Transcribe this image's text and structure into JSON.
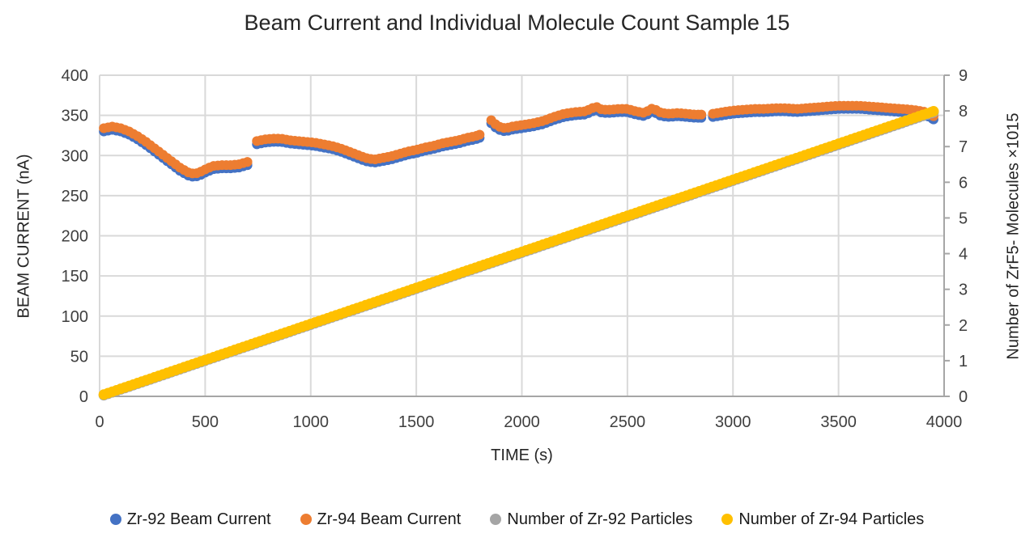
{
  "chart_data": {
    "type": "scatter",
    "title": "Beam Current and Individual Molecule Count Sample 15",
    "x_axis": {
      "label": "TIME (s)",
      "min": 0,
      "max": 4000,
      "tick_step": 500,
      "ticks": [
        0,
        500,
        1000,
        1500,
        2000,
        2500,
        3000,
        3500,
        4000
      ]
    },
    "y_axis_left": {
      "label": "BEAM CURRENT (nA)",
      "min": 0,
      "max": 400,
      "tick_step": 50,
      "ticks": [
        0,
        50,
        100,
        150,
        200,
        250,
        300,
        350,
        400
      ]
    },
    "y_axis_right": {
      "label": "Number of ZrF5- Molecules ×1015",
      "min": 0,
      "max": 9,
      "tick_step": 1,
      "ticks": [
        0,
        1,
        2,
        3,
        4,
        5,
        6,
        7,
        8,
        9
      ]
    },
    "grid": true,
    "legend_position": "bottom",
    "sample_interval_s": 20,
    "style": {
      "grid_color": "#D9D9D9",
      "axis_color": "#A6A6A6",
      "tick_text_color": "#3f3f3f",
      "background": "#FFFFFF"
    },
    "series": [
      {
        "name": "Zr-92 Beam Current",
        "color": "#4472C4",
        "axis": "left",
        "marker_radius": 6,
        "segments": [
          [
            [
              20,
              330
            ],
            [
              60,
              332
            ],
            [
              100,
              330
            ],
            [
              140,
              326
            ],
            [
              180,
              320
            ],
            [
              220,
              313
            ],
            [
              260,
              305
            ],
            [
              300,
              297
            ],
            [
              340,
              289
            ],
            [
              380,
              281
            ],
            [
              420,
              275
            ],
            [
              450,
              273
            ],
            [
              480,
              276
            ],
            [
              510,
              280
            ],
            [
              540,
              283
            ],
            [
              580,
              284
            ],
            [
              620,
              284
            ],
            [
              660,
              285
            ],
            [
              700,
              288
            ]
          ],
          [
            [
              745,
              314
            ],
            [
              780,
              316
            ],
            [
              820,
              317
            ],
            [
              860,
              317
            ],
            [
              900,
              315
            ],
            [
              940,
              314
            ],
            [
              980,
              313
            ],
            [
              1020,
              312
            ],
            [
              1060,
              310
            ],
            [
              1100,
              308
            ],
            [
              1140,
              305
            ],
            [
              1180,
              301
            ],
            [
              1220,
              297
            ],
            [
              1260,
              293
            ],
            [
              1300,
              291
            ],
            [
              1340,
              293
            ],
            [
              1380,
              295
            ],
            [
              1420,
              298
            ],
            [
              1460,
              301
            ],
            [
              1500,
              303
            ],
            [
              1540,
              306
            ],
            [
              1580,
              308
            ],
            [
              1620,
              311
            ],
            [
              1660,
              313
            ],
            [
              1700,
              315
            ],
            [
              1740,
              318
            ],
            [
              1780,
              320
            ],
            [
              1800,
              322
            ]
          ],
          [
            [
              1855,
              340
            ],
            [
              1875,
              335
            ],
            [
              1900,
              331
            ],
            [
              1925,
              330
            ],
            [
              1950,
              332
            ],
            [
              2000,
              334
            ],
            [
              2050,
              336
            ],
            [
              2100,
              339
            ],
            [
              2150,
              344
            ],
            [
              2200,
              348
            ],
            [
              2250,
              350
            ],
            [
              2300,
              351
            ],
            [
              2350,
              357
            ],
            [
              2380,
              353
            ],
            [
              2420,
              353
            ],
            [
              2460,
              354
            ],
            [
              2500,
              354
            ],
            [
              2540,
              351
            ],
            [
              2580,
              349
            ],
            [
              2620,
              355
            ],
            [
              2660,
              349
            ],
            [
              2700,
              348
            ],
            [
              2740,
              349
            ],
            [
              2780,
              348
            ],
            [
              2820,
              347
            ],
            [
              2850,
              347
            ]
          ],
          [
            [
              2905,
              348
            ],
            [
              2950,
              350
            ],
            [
              3000,
              352
            ],
            [
              3050,
              353
            ],
            [
              3100,
              354
            ],
            [
              3150,
              354
            ],
            [
              3200,
              355
            ],
            [
              3250,
              355
            ],
            [
              3300,
              354
            ],
            [
              3350,
              355
            ],
            [
              3400,
              356
            ],
            [
              3450,
              357
            ],
            [
              3500,
              358
            ],
            [
              3550,
              358
            ],
            [
              3600,
              358
            ],
            [
              3650,
              357
            ],
            [
              3700,
              356
            ],
            [
              3750,
              355
            ],
            [
              3800,
              354
            ],
            [
              3850,
              353
            ],
            [
              3900,
              351
            ],
            [
              3930,
              348
            ],
            [
              3950,
              345
            ]
          ]
        ]
      },
      {
        "name": "Zr-94 Beam Current",
        "color": "#ED7D31",
        "axis": "left",
        "marker_radius": 6,
        "segments": [
          [
            [
              20,
              334
            ],
            [
              60,
              336
            ],
            [
              100,
              334
            ],
            [
              140,
              330
            ],
            [
              180,
              324
            ],
            [
              220,
              317
            ],
            [
              260,
              309
            ],
            [
              300,
              301
            ],
            [
              340,
              293
            ],
            [
              380,
              285
            ],
            [
              420,
              279
            ],
            [
              450,
              277
            ],
            [
              480,
              280
            ],
            [
              510,
              284
            ],
            [
              540,
              287
            ],
            [
              580,
              288
            ],
            [
              620,
              288
            ],
            [
              660,
              289
            ],
            [
              700,
              292
            ]
          ],
          [
            [
              745,
              318
            ],
            [
              780,
              320
            ],
            [
              820,
              321
            ],
            [
              860,
              321
            ],
            [
              900,
              319
            ],
            [
              940,
              318
            ],
            [
              980,
              317
            ],
            [
              1020,
              316
            ],
            [
              1060,
              314
            ],
            [
              1100,
              312
            ],
            [
              1140,
              309
            ],
            [
              1180,
              305
            ],
            [
              1220,
              301
            ],
            [
              1260,
              297
            ],
            [
              1300,
              295
            ],
            [
              1340,
              297
            ],
            [
              1380,
              299
            ],
            [
              1420,
              302
            ],
            [
              1460,
              305
            ],
            [
              1500,
              307
            ],
            [
              1540,
              310
            ],
            [
              1580,
              312
            ],
            [
              1620,
              315
            ],
            [
              1660,
              317
            ],
            [
              1700,
              319
            ],
            [
              1740,
              322
            ],
            [
              1780,
              324
            ],
            [
              1800,
              326
            ]
          ],
          [
            [
              1855,
              344
            ],
            [
              1875,
              339
            ],
            [
              1900,
              335
            ],
            [
              1925,
              334
            ],
            [
              1950,
              336
            ],
            [
              2000,
              338
            ],
            [
              2050,
              340
            ],
            [
              2100,
              343
            ],
            [
              2150,
              348
            ],
            [
              2200,
              352
            ],
            [
              2250,
              354
            ],
            [
              2300,
              355
            ],
            [
              2350,
              361
            ],
            [
              2380,
              357
            ],
            [
              2420,
              357
            ],
            [
              2460,
              358
            ],
            [
              2500,
              358
            ],
            [
              2540,
              355
            ],
            [
              2580,
              353
            ],
            [
              2620,
              359
            ],
            [
              2660,
              353
            ],
            [
              2700,
              352
            ],
            [
              2740,
              353
            ],
            [
              2780,
              352
            ],
            [
              2820,
              351
            ],
            [
              2850,
              351
            ]
          ],
          [
            [
              2905,
              352
            ],
            [
              2950,
              354
            ],
            [
              3000,
              356
            ],
            [
              3050,
              357
            ],
            [
              3100,
              358
            ],
            [
              3150,
              358
            ],
            [
              3200,
              359
            ],
            [
              3250,
              359
            ],
            [
              3300,
              358
            ],
            [
              3350,
              359
            ],
            [
              3400,
              360
            ],
            [
              3450,
              361
            ],
            [
              3500,
              362
            ],
            [
              3550,
              362
            ],
            [
              3600,
              362
            ],
            [
              3650,
              361
            ],
            [
              3700,
              360
            ],
            [
              3750,
              359
            ],
            [
              3800,
              358
            ],
            [
              3850,
              357
            ],
            [
              3900,
              355
            ],
            [
              3930,
              352
            ],
            [
              3950,
              349
            ]
          ]
        ]
      },
      {
        "name": "Number of Zr-92 Particles",
        "color": "#A5A5A5",
        "axis": "right",
        "marker_radius": 6.5,
        "segments": [
          [
            [
              20,
              0.03
            ],
            [
              3950,
              7.96
            ]
          ]
        ]
      },
      {
        "name": "Number of Zr-94 Particles",
        "color": "#FFC000",
        "axis": "right",
        "marker_radius": 6.5,
        "segments": [
          [
            [
              20,
              0.05
            ],
            [
              3950,
              7.99
            ]
          ]
        ]
      }
    ]
  }
}
